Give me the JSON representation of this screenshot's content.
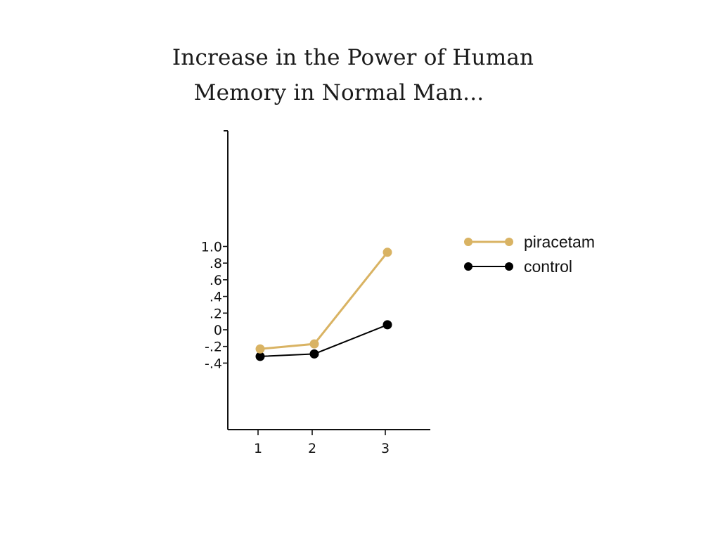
{
  "chart_data": {
    "type": "line",
    "title_line1": "Increase in the Power of Human",
    "title_line2": "Memory in Normal Man...",
    "xlabel": "",
    "ylabel": "",
    "x": [
      1,
      2,
      3
    ],
    "x_tick_labels": [
      "1",
      "2",
      "3"
    ],
    "y_tick_labels": [
      "1.0",
      ".8",
      ".6",
      ".4",
      ".2",
      "0",
      "-.2",
      "-.4"
    ],
    "y_tick_values": [
      1.0,
      0.8,
      0.6,
      0.4,
      0.2,
      0,
      -0.2,
      -0.4
    ],
    "ylim": [
      -0.6,
      1.2
    ],
    "grid": false,
    "legend_position": "right",
    "series": [
      {
        "name": "piracetam",
        "color": "#d9b363",
        "values": [
          -0.23,
          -0.17,
          0.93
        ]
      },
      {
        "name": "control",
        "color": "#000000",
        "values": [
          -0.32,
          -0.29,
          0.06
        ]
      }
    ]
  }
}
